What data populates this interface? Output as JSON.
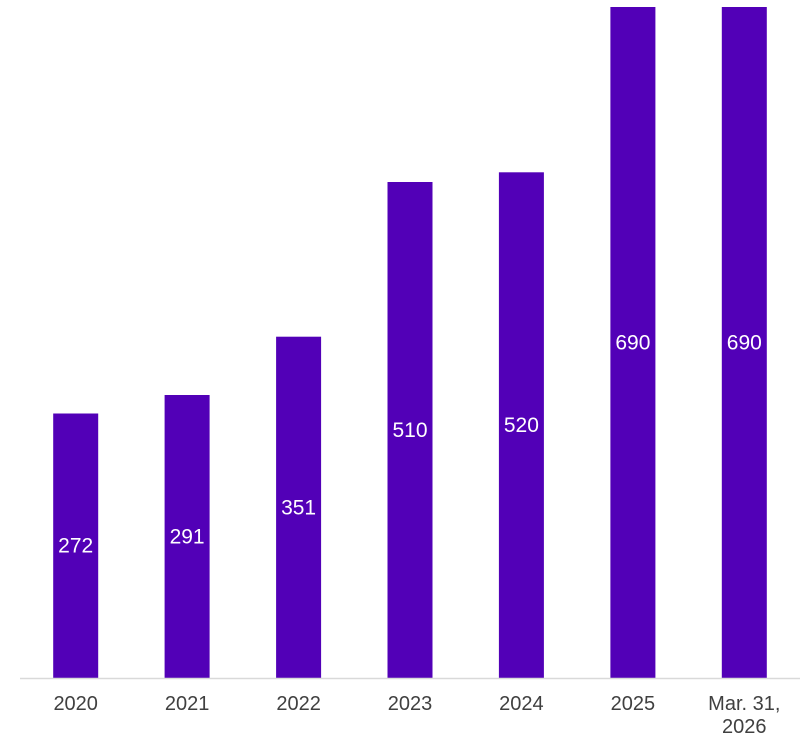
{
  "chart_data": {
    "type": "bar",
    "title": "",
    "xlabel": "",
    "ylabel": "",
    "categories": [
      [
        "2020"
      ],
      [
        "2021"
      ],
      [
        "2022"
      ],
      [
        "2023"
      ],
      [
        "2024"
      ],
      [
        "2025"
      ],
      [
        "Mar. 31,",
        "2026"
      ]
    ],
    "values": [
      272,
      291,
      351,
      510,
      520,
      690,
      690
    ],
    "ylim": [
      0,
      690
    ],
    "grid": false,
    "legend": "none",
    "colors": {
      "bar": "#5200b7",
      "data_label": "#ffffff",
      "axis": "#d9d9d9",
      "tick_label": "#404040"
    }
  }
}
